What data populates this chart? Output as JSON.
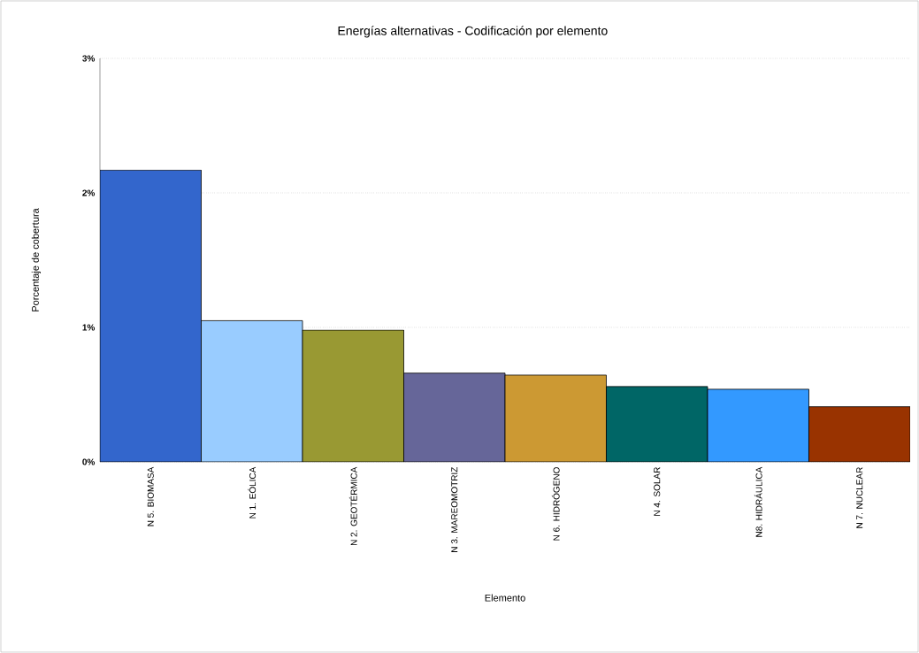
{
  "chart_data": {
    "type": "bar",
    "title": "Energías alternativas - Codificación por elemento",
    "xlabel": "Elemento",
    "ylabel": "Porcentaje de cobertura",
    "categories": [
      "N 5. BIOMASA",
      "N 1. EÓLICA",
      "N 2. GEOTÉRMICA",
      "N 3. MAREOMOTRIZ",
      "N 6. HIDRÓGENO",
      "N 4. SOLAR",
      "N8. HIDRÁULICA",
      "N 7. NUCLEAR"
    ],
    "values": [
      2.17,
      1.05,
      0.98,
      0.66,
      0.645,
      0.56,
      0.54,
      0.41
    ],
    "colors": [
      "#3366cc",
      "#99ccff",
      "#999933",
      "#666699",
      "#cc9933",
      "#006666",
      "#3399ff",
      "#993300"
    ],
    "ylim": [
      0,
      3
    ],
    "yticks": [
      {
        "value": 0,
        "label": "0%"
      },
      {
        "value": 1,
        "label": "1%"
      },
      {
        "value": 2,
        "label": "2%"
      },
      {
        "value": 3,
        "label": "3%"
      }
    ],
    "grid": "y"
  }
}
